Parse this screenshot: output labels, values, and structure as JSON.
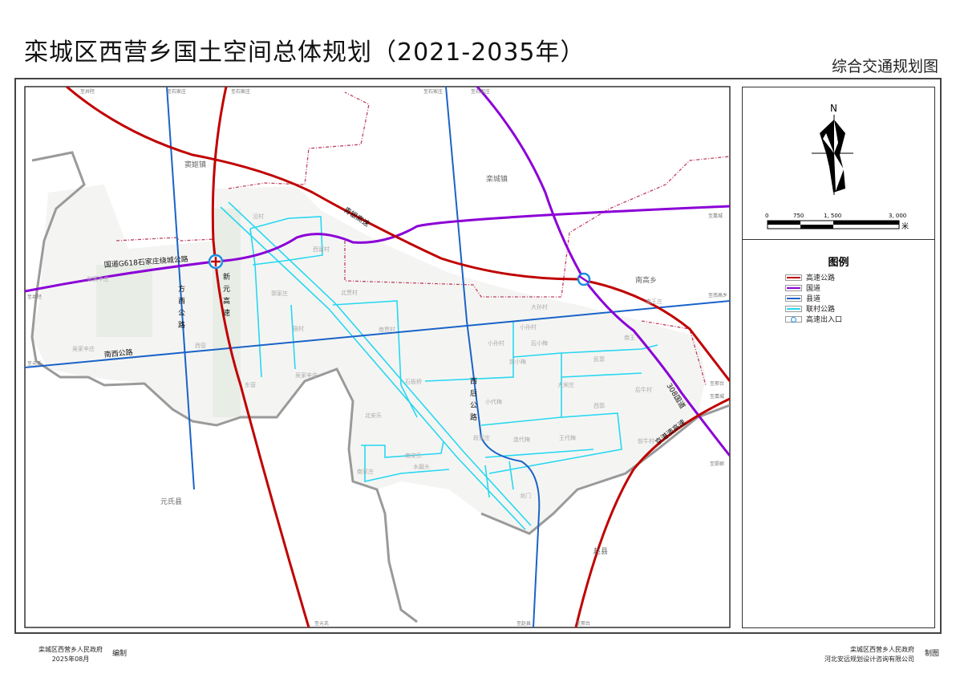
{
  "header": {
    "title": "栾城区西营乡国土空间总体规划（2021-2035年）",
    "subtitle": "综合交通规划图"
  },
  "compass": {
    "north_label": "N"
  },
  "scale_bar": {
    "ticks": [
      "0",
      "750",
      "1, 500",
      "3, 000"
    ],
    "unit": "米"
  },
  "legend": {
    "title": "图例",
    "items": [
      {
        "label": "高速公路",
        "color": "#c00000"
      },
      {
        "label": "国道",
        "color": "#8b00d6"
      },
      {
        "label": "县道",
        "color": "#1a63c8"
      },
      {
        "label": "联村公路",
        "color": "#27d7f0"
      },
      {
        "label": "高速出入口",
        "color": "#1a8fe0"
      }
    ]
  },
  "map": {
    "colors": {
      "expressway": "#c00000",
      "national": "#8b00d6",
      "county": "#1a63c8",
      "village": "#27d7f0",
      "boundary": "#9a9a9a",
      "town_boundary": "#c04060"
    },
    "road_labels": {
      "qingyin": "青银高速",
      "g618": "国道G618石家庄绕城公路",
      "xinyuan": "新元高速",
      "fangxi": "方西公路",
      "nanxi": "南西公路",
      "xihou": "西后公路",
      "g308": "308国道",
      "jinggangao": "京港澳高速"
    },
    "towns": [
      "窦妪镇",
      "栾城镇",
      "南高乡",
      "元氏县",
      "赵县"
    ],
    "villages": [
      "沿村",
      "西留村",
      "郭家庄",
      "北贾村",
      "宿村",
      "南贾村",
      "吴家辛庄",
      "东营",
      "石板桥",
      "张家辛庄",
      "吴家辛庄",
      "西营",
      "大孙村",
      "小孙村",
      "后小梅",
      "小孙村",
      "前小梅",
      "大宋庄",
      "小代梅",
      "西郭",
      "连代梅",
      "王代梅",
      "段家庄",
      "前牛村",
      "后牛村",
      "南王庄",
      "南王",
      "民郭",
      "北安乐",
      "南安乐",
      "水磨头",
      "南家庄",
      "龙门"
    ],
    "edge_labels": {
      "top": [
        "至井陉",
        "至石家庄",
        "至石家庄",
        "至石家庄",
        "至石家庄"
      ],
      "left": [
        "至井陉",
        "至元氏"
      ],
      "right": [
        "至藁城",
        "至南高乡",
        "至邢台",
        "至藁城",
        "至邯郸"
      ],
      "bottom": [
        "至元氏",
        "至赵县",
        "至邢台"
      ]
    }
  },
  "footer": {
    "left_org": "栾城区西营乡人民政府",
    "left_date": "2025年08月",
    "left_action": "编制",
    "right_org1": "栾城区西营乡人民政府",
    "right_org2": "河北安远规划设计咨询有限公司",
    "right_action": "制图"
  }
}
